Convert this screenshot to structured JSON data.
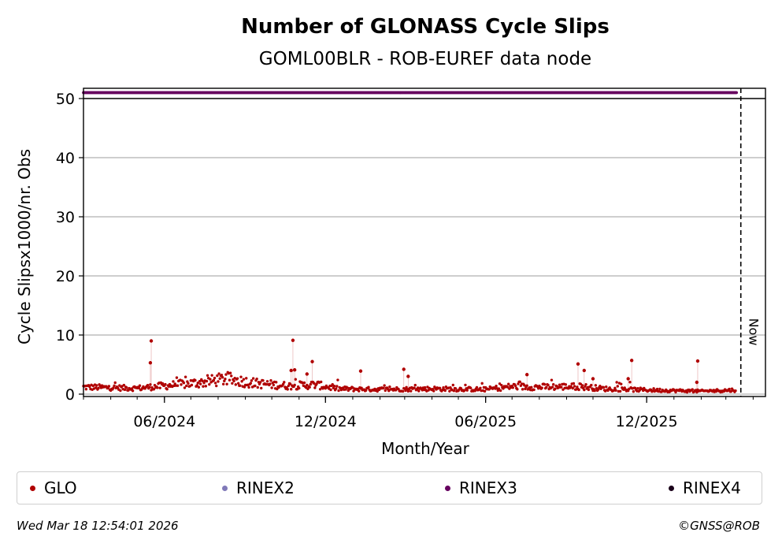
{
  "chart_data": {
    "type": "scatter",
    "title": "Number of GLONASS Cycle Slips",
    "subtitle": "GOML00BLR - ROB-EUREF data node",
    "xlabel": "Month/Year",
    "ylabel": "Cycle Slipsx1000/nr. Obs",
    "x_range": [
      "2024-03-01",
      "2026-04-15"
    ],
    "ylim": [
      0,
      52
    ],
    "y_ticks": [
      0,
      10,
      20,
      30,
      40,
      50
    ],
    "x_ticks": [
      {
        "date": "2024-06-01",
        "label": "06/2024"
      },
      {
        "date": "2024-12-01",
        "label": "12/2024"
      },
      {
        "date": "2025-06-01",
        "label": "06/2025"
      },
      {
        "date": "2025-12-01",
        "label": "12/2025"
      }
    ],
    "grid": "horizontal",
    "now_date": "2026-03-18",
    "now_label": "Now",
    "legend_position": "bottom",
    "series": [
      {
        "name": "GLO",
        "color": "#b00000",
        "start_date": "2024-03-01",
        "end_date": "2026-03-12",
        "baseline": [
          [
            "2024-03-01",
            1.2
          ],
          [
            "2024-05-01",
            1.0
          ],
          [
            "2024-06-15",
            1.6
          ],
          [
            "2024-07-15",
            2.0
          ],
          [
            "2024-08-10",
            2.6
          ],
          [
            "2024-09-15",
            1.8
          ],
          [
            "2024-10-20",
            1.4
          ],
          [
            "2024-11-20",
            1.6
          ],
          [
            "2024-12-15",
            0.9
          ],
          [
            "2025-02-01",
            0.8
          ],
          [
            "2025-04-01",
            0.9
          ],
          [
            "2025-06-01",
            0.8
          ],
          [
            "2025-07-01",
            1.3
          ],
          [
            "2025-08-01",
            1.2
          ],
          [
            "2025-09-15",
            1.3
          ],
          [
            "2025-10-15",
            0.9
          ],
          [
            "2025-12-01",
            0.7
          ],
          [
            "2026-02-01",
            0.5
          ],
          [
            "2026-03-12",
            0.7
          ]
        ],
        "spikes": [
          [
            "2024-05-17",
            9.0
          ],
          [
            "2024-05-16",
            5.3
          ],
          [
            "2024-10-25",
            9.1
          ],
          [
            "2024-10-23",
            4.0
          ],
          [
            "2024-10-27",
            4.1
          ],
          [
            "2024-11-16",
            5.5
          ],
          [
            "2024-11-10",
            3.4
          ],
          [
            "2025-01-10",
            3.9
          ],
          [
            "2025-02-28",
            4.2
          ],
          [
            "2025-03-05",
            3.0
          ],
          [
            "2025-07-18",
            3.3
          ],
          [
            "2025-09-14",
            5.1
          ],
          [
            "2025-09-21",
            4.0
          ],
          [
            "2025-10-01",
            2.6
          ],
          [
            "2025-11-14",
            5.7
          ],
          [
            "2025-11-10",
            2.6
          ],
          [
            "2026-01-28",
            5.6
          ],
          [
            "2026-01-27",
            2.0
          ]
        ]
      },
      {
        "name": "RINEX2",
        "color": "#8079b8",
        "values": []
      },
      {
        "name": "RINEX3",
        "color": "#66005f",
        "start_date": "2024-03-01",
        "end_date": "2026-03-13",
        "value": 51
      },
      {
        "name": "RINEX4",
        "color": "#1a001a",
        "values": []
      }
    ]
  },
  "footer": {
    "timestamp": "Wed Mar 18 12:54:01 2026",
    "credit": "©GNSS@ROB"
  }
}
